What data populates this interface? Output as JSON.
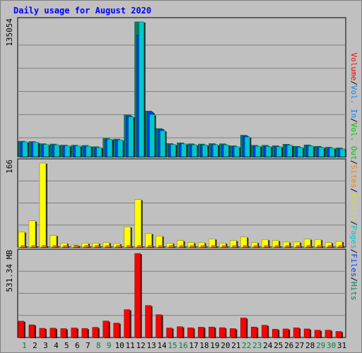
{
  "title": "Daily usage for August 2020",
  "colors": {
    "hits": "#00805c",
    "files": "#0040ff",
    "pages": "#00c8c8",
    "visits": "#ffff00",
    "sites": "#ff8000",
    "kbytes": "#ff0000",
    "kbytes_in": "#0080ff",
    "kbytes_out": "#00c000",
    "weekday_label": "#0000ff",
    "weekend_label": "#008040"
  },
  "legend": {
    "volume": "Volume",
    "vol_in": "Vol. In",
    "vol_out": "Vol. Out",
    "sites": "Sites",
    "visits": "Visits",
    "pages": "Pages",
    "files": "Files",
    "hits": "Hits",
    "separator": "/"
  },
  "chart_data": {
    "type": "bar",
    "title": "Daily usage for August 2020",
    "categories": [
      "1",
      "2",
      "3",
      "4",
      "5",
      "6",
      "7",
      "8",
      "9",
      "10",
      "11",
      "12",
      "13",
      "14",
      "15",
      "16",
      "17",
      "18",
      "19",
      "20",
      "21",
      "22",
      "23",
      "24",
      "25",
      "26",
      "27",
      "28",
      "29",
      "30",
      "31"
    ],
    "weekend_days": [
      "1",
      "8",
      "9",
      "15",
      "16",
      "22",
      "23",
      "29",
      "30"
    ],
    "panels": [
      {
        "name": "top",
        "max_label": "135054",
        "ylim": [
          0,
          135054
        ],
        "series": [
          {
            "name": "Hits",
            "color": "#00805c",
            "values": [
              15500,
              15200,
              13000,
              12700,
              11600,
              11500,
              11300,
              10000,
              18400,
              17600,
              41800,
              135054,
              45700,
              28200,
              13200,
              13900,
              12900,
              12700,
              13100,
              12900,
              10900,
              21500,
              11400,
              11400,
              11000,
              12500,
              10400,
              11800,
              10400,
              9500,
              8800
            ]
          },
          {
            "name": "Files",
            "color": "#0040ff",
            "values": [
              14700,
              14400,
              12100,
              11800,
              10700,
              10700,
              10400,
              9100,
              17400,
              16700,
              40600,
              122000,
              44600,
              27200,
              12200,
              12900,
              11900,
              11700,
              12100,
              11900,
              10000,
              20500,
              10500,
              10400,
              10100,
              11500,
              9400,
              10800,
              9500,
              8600,
              7900
            ]
          },
          {
            "name": "Pages",
            "color": "#00c8c8",
            "values": [
              14800,
              14500,
              12200,
              11900,
              10900,
              10800,
              10500,
              9200,
              17500,
              16800,
              40100,
              135054,
              42200,
              26000,
              12200,
              12900,
              11800,
              11700,
              12000,
              11800,
              10000,
              19800,
              10500,
              10300,
              10000,
              11500,
              9400,
              10800,
              9400,
              8600,
              7800
            ]
          }
        ]
      },
      {
        "name": "middle",
        "max_label": "166",
        "ylim": [
          0,
          166
        ],
        "series": [
          {
            "name": "Visits",
            "color": "#ffff00",
            "values": [
              30,
              52,
              166,
              23,
              8,
              4,
              8,
              8,
              9,
              7,
              40,
              94,
              27,
              22,
              8,
              13,
              9,
              9,
              16,
              8,
              13,
              20,
              9,
              15,
              13,
              10,
              10,
              16,
              15,
              9,
              11
            ]
          },
          {
            "name": "Sites",
            "color": "#ff8000",
            "values": [
              3,
              3,
              3,
              3,
              3,
              3,
              3,
              3,
              3,
              3,
              3,
              3,
              3,
              3,
              3,
              3,
              3,
              3,
              3,
              3,
              3,
              3,
              3,
              3,
              3,
              3,
              3,
              3,
              3,
              3,
              3
            ]
          }
        ]
      },
      {
        "name": "bottom",
        "max_label": "531.34 MB",
        "ylim": [
          0,
          531.34
        ],
        "series": [
          {
            "name": "Volume",
            "color": "#ff0000",
            "values": [
              103,
              80,
              58,
              59,
              56,
              60,
              57,
              64,
              104,
              91,
              176,
              531,
              202,
              144,
              60,
              68,
              61,
              65,
              66,
              62,
              56,
              123,
              66,
              77,
              52,
              54,
              61,
              54,
              46,
              46,
              38
            ]
          }
        ]
      }
    ]
  }
}
